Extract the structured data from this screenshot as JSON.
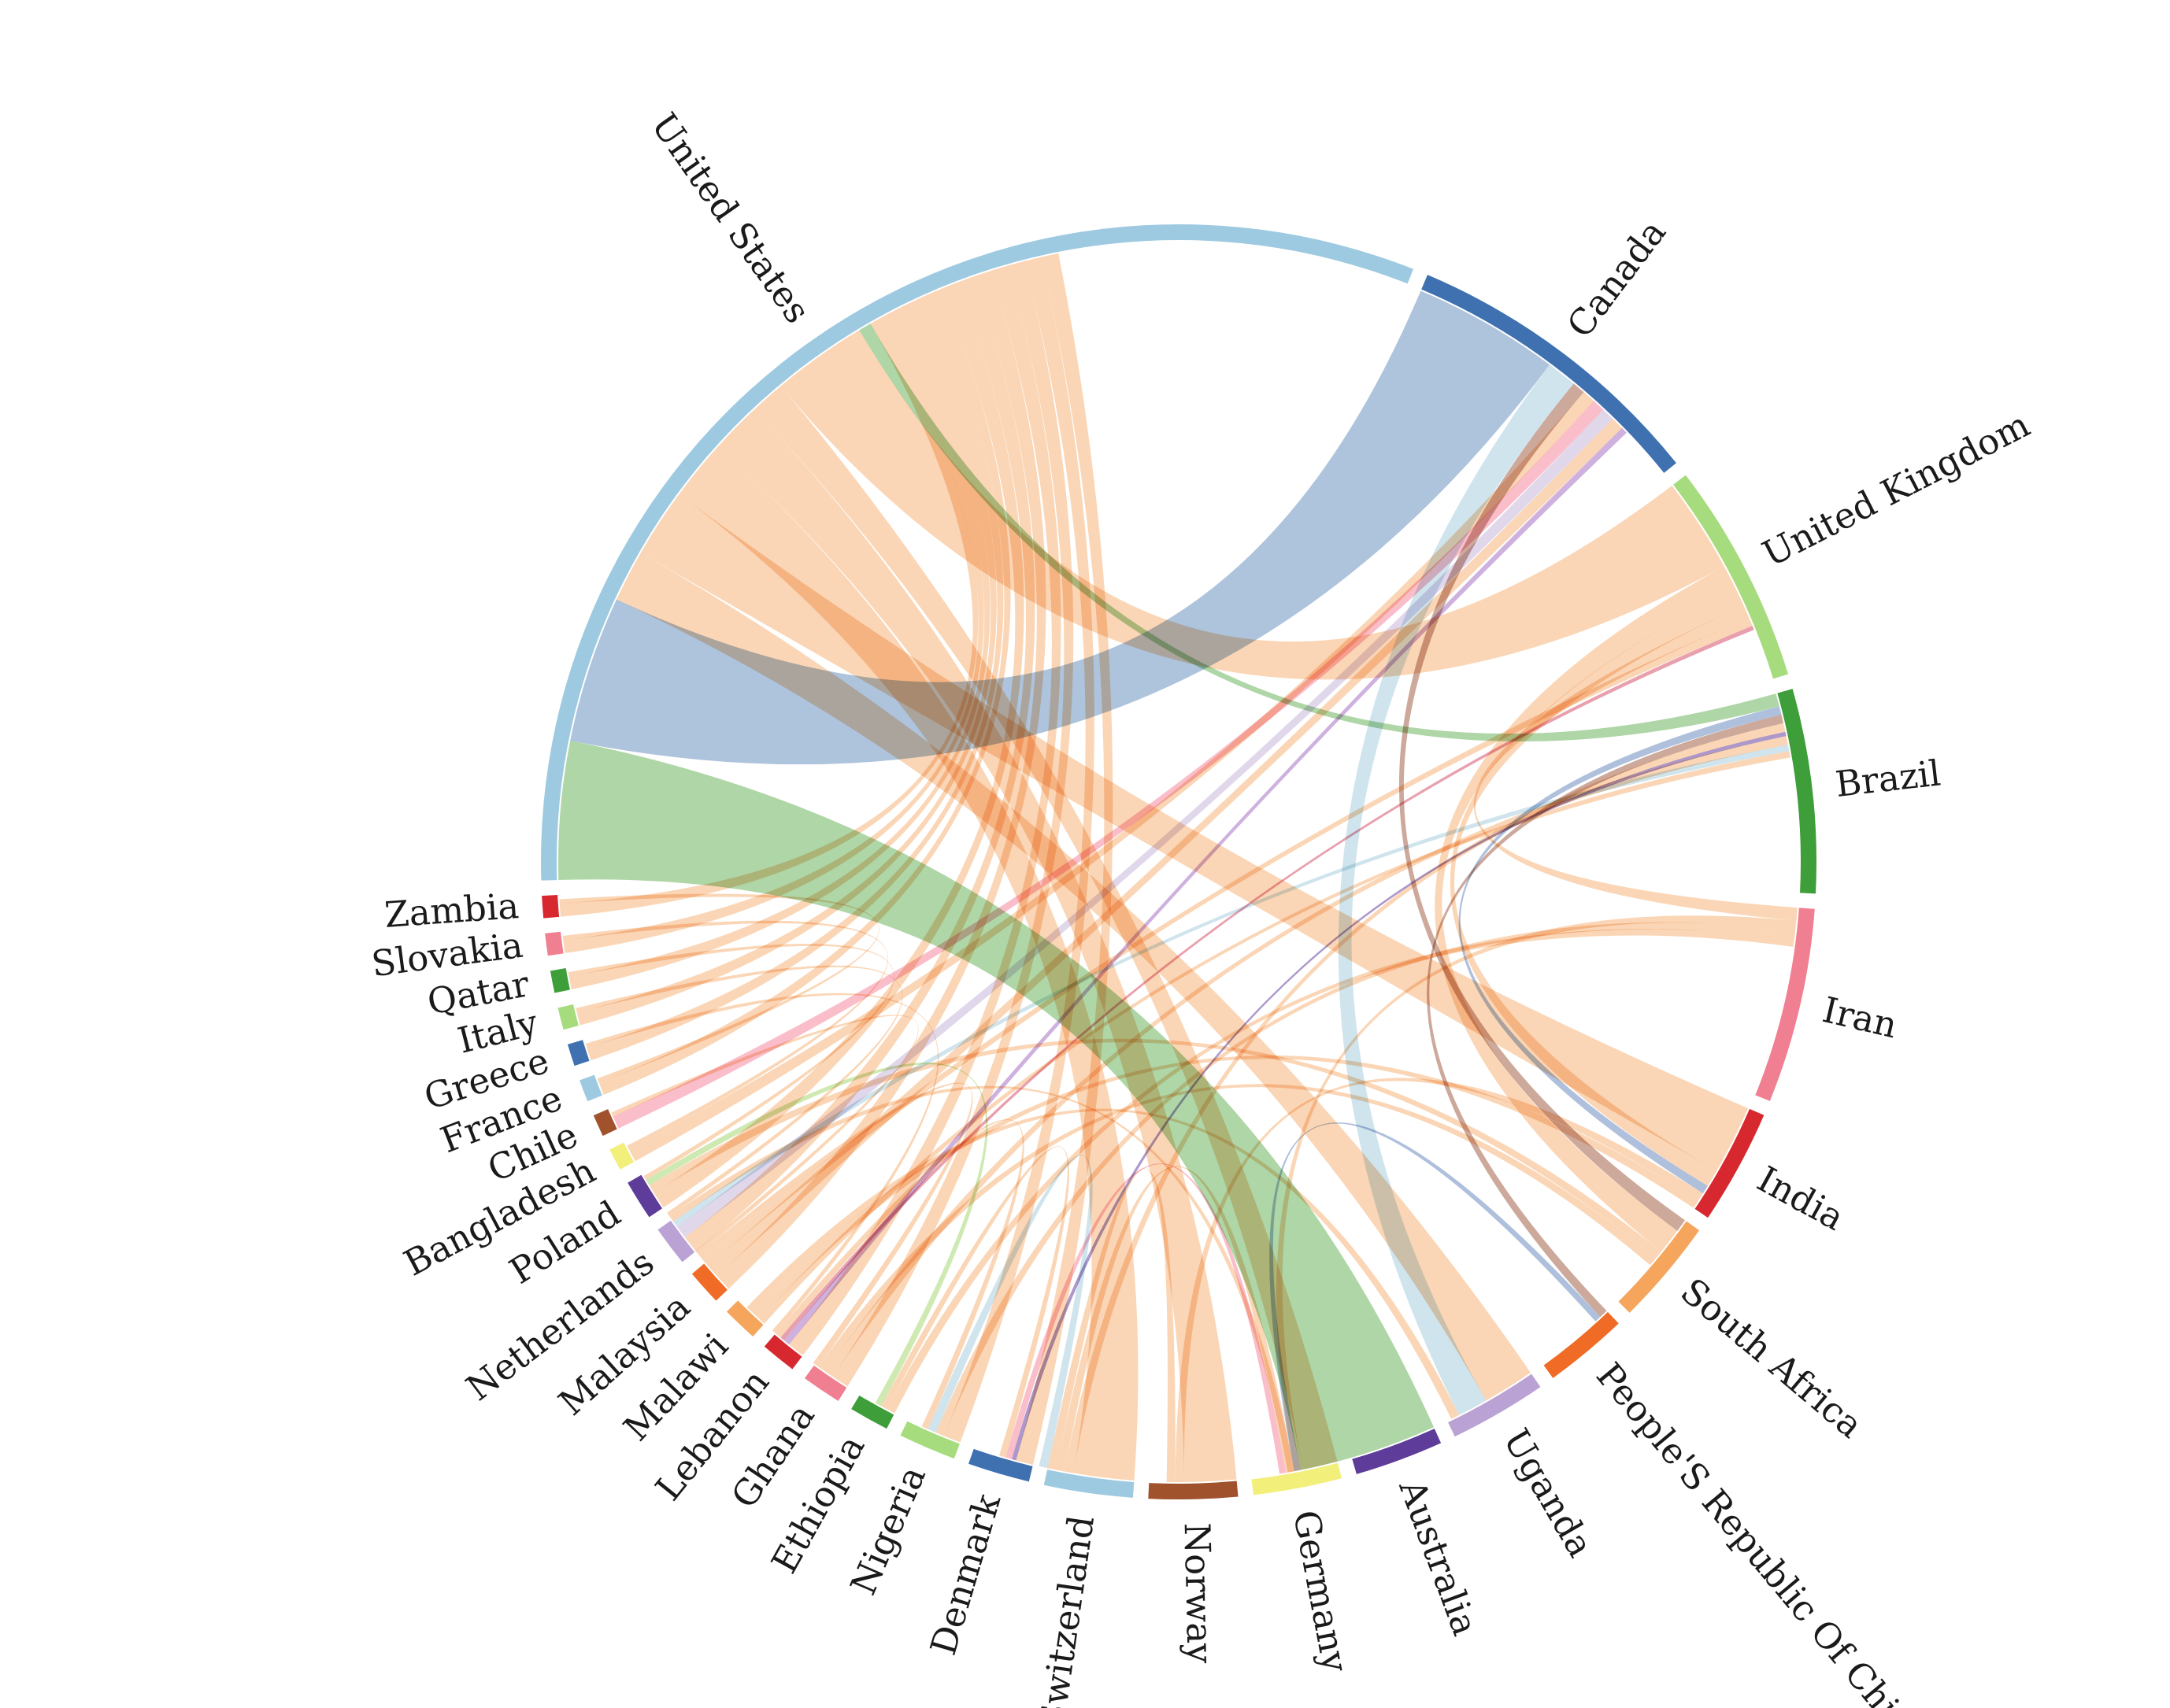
{
  "chart_data": {
    "type": "chord",
    "title": "",
    "legend": "none",
    "groups": [
      {
        "name": "United States",
        "value": 28,
        "color": "#9ecae1"
      },
      {
        "name": "Canada",
        "value": 7,
        "color": "#3f71b0"
      },
      {
        "name": "United Kingdom",
        "value": 5,
        "color": "#a6dc7e"
      },
      {
        "name": "Brazil",
        "value": 4.6,
        "color": "#3e9e3a"
      },
      {
        "name": "Iran",
        "value": 4.4,
        "color": "#f07f92"
      },
      {
        "name": "India",
        "value": 2.6,
        "color": "#d7282f"
      },
      {
        "name": "South Africa",
        "value": 2.4,
        "color": "#f5a55c"
      },
      {
        "name": "People'S Republic Of China",
        "value": 1.9,
        "color": "#f06b25"
      },
      {
        "name": "Uganda",
        "value": 2.2,
        "color": "#bba2d4"
      },
      {
        "name": "Australia",
        "value": 2.0,
        "color": "#5e3c99"
      },
      {
        "name": "Germany",
        "value": 2.0,
        "color": "#f2f07b"
      },
      {
        "name": "Norway",
        "value": 2.0,
        "color": "#a0522d"
      },
      {
        "name": "Switzerland",
        "value": 2.0,
        "color": "#9ecae1"
      },
      {
        "name": "Denmark",
        "value": 1.4,
        "color": "#3f71b0"
      },
      {
        "name": "Nigeria",
        "value": 1.3,
        "color": "#a6dc7e"
      },
      {
        "name": "Ethiopia",
        "value": 0.9,
        "color": "#3e9e3a"
      },
      {
        "name": "Ghana",
        "value": 0.9,
        "color": "#f07f92"
      },
      {
        "name": "Lebanon",
        "value": 0.8,
        "color": "#d7282f"
      },
      {
        "name": "Malawi",
        "value": 0.8,
        "color": "#f5a55c"
      },
      {
        "name": "Malaysia",
        "value": 0.8,
        "color": "#f06b25"
      },
      {
        "name": "Netherlands",
        "value": 0.9,
        "color": "#bba2d4"
      },
      {
        "name": "Poland",
        "value": 0.9,
        "color": "#5e3c99"
      },
      {
        "name": "Bangladesh",
        "value": 0.5,
        "color": "#f2f07b"
      },
      {
        "name": "Chile",
        "value": 0.5,
        "color": "#a0522d"
      },
      {
        "name": "France",
        "value": 0.5,
        "color": "#9ecae1"
      },
      {
        "name": "Greece",
        "value": 0.5,
        "color": "#3f71b0"
      },
      {
        "name": "Italy",
        "value": 0.5,
        "color": "#a6dc7e"
      },
      {
        "name": "Qatar",
        "value": 0.5,
        "color": "#3e9e3a"
      },
      {
        "name": "Slovakia",
        "value": 0.5,
        "color": "#f07f92"
      },
      {
        "name": "Zambia",
        "value": 0.5,
        "color": "#d7282f"
      }
    ],
    "links": [
      {
        "source": "United States",
        "target": "Australia",
        "value": 3.2,
        "color": "#a1cf98"
      },
      {
        "source": "United States",
        "target": "Canada",
        "value": 3.4,
        "color": "#a0b8d6"
      },
      {
        "source": "United States",
        "target": "Uganda",
        "value": 1.2,
        "color": "#f9cfa9"
      },
      {
        "source": "United States",
        "target": "India",
        "value": 1.6,
        "color": "#f9cfa9"
      },
      {
        "source": "United States",
        "target": "Switzerland",
        "value": 1.4,
        "color": "#f9cfa9"
      },
      {
        "source": "United States",
        "target": "Norway",
        "value": 1.2,
        "color": "#f9cfa9"
      },
      {
        "source": "United States",
        "target": "Germany",
        "value": 0.8,
        "color": "#f9cfa9"
      },
      {
        "source": "United States",
        "target": "United Kingdom",
        "value": 2.2,
        "color": "#f9cfa9"
      },
      {
        "source": "United States",
        "target": "Brazil",
        "value": 0.3,
        "color": "#a1cf98"
      },
      {
        "source": "United States",
        "target": "Zambia",
        "value": 0.3,
        "color": "#f9cfa9"
      },
      {
        "source": "United States",
        "target": "Slovakia",
        "value": 0.3,
        "color": "#f9cfa9"
      },
      {
        "source": "United States",
        "target": "Qatar",
        "value": 0.3,
        "color": "#f9cfa9"
      },
      {
        "source": "United States",
        "target": "Italy",
        "value": 0.3,
        "color": "#f9cfa9"
      },
      {
        "source": "United States",
        "target": "Greece",
        "value": 0.3,
        "color": "#f9cfa9"
      },
      {
        "source": "United States",
        "target": "France",
        "value": 0.3,
        "color": "#f9cfa9"
      },
      {
        "source": "United States",
        "target": "Poland",
        "value": 0.4,
        "color": "#f9cfa9"
      },
      {
        "source": "United States",
        "target": "Netherlands",
        "value": 0.4,
        "color": "#f9cfa9"
      },
      {
        "source": "United States",
        "target": "Malaysia",
        "value": 0.4,
        "color": "#f9cfa9"
      },
      {
        "source": "United States",
        "target": "Lebanon",
        "value": 0.4,
        "color": "#f9cfa9"
      },
      {
        "source": "United States",
        "target": "Ghana",
        "value": 0.4,
        "color": "#f9cfa9"
      },
      {
        "source": "United States",
        "target": "Nigeria",
        "value": 0.4,
        "color": "#f9cfa9"
      },
      {
        "source": "United States",
        "target": "Denmark",
        "value": 0.4,
        "color": "#f9cfa9"
      },
      {
        "source": "Canada",
        "target": "Uganda",
        "value": 0.7,
        "color": "#c8dfea"
      },
      {
        "source": "Canada",
        "target": "South Africa",
        "value": 0.3,
        "color": "#c49a8b"
      },
      {
        "source": "Canada",
        "target": "Bangladesh",
        "value": 0.3,
        "color": "#f9cfa9"
      },
      {
        "source": "Canada",
        "target": "Chile",
        "value": 0.3,
        "color": "#f9b3c1"
      },
      {
        "source": "Canada",
        "target": "Netherlands",
        "value": 0.3,
        "color": "#dcd0e8"
      },
      {
        "source": "Canada",
        "target": "Malaysia",
        "value": 0.3,
        "color": "#f9cfa9"
      },
      {
        "source": "Canada",
        "target": "Lebanon",
        "value": 0.15,
        "color": "#c7a3d9"
      },
      {
        "source": "United Kingdom",
        "target": "South Africa",
        "value": 0.6,
        "color": "#f9cfa9"
      },
      {
        "source": "United Kingdom",
        "target": "India",
        "value": 0.4,
        "color": "#f9cfa9"
      },
      {
        "source": "United Kingdom",
        "target": "Iran",
        "value": 0.3,
        "color": "#f9cfa9"
      },
      {
        "source": "United Kingdom",
        "target": "Malaysia",
        "value": 0.2,
        "color": "#f9cfa9"
      },
      {
        "source": "United Kingdom",
        "target": "Lebanon",
        "value": 0.1,
        "color": "#e58fa0"
      },
      {
        "source": "Brazil",
        "target": "India",
        "value": 0.2,
        "color": "#a1b5d6"
      },
      {
        "source": "Brazil",
        "target": "People'S Republic Of China",
        "value": 0.2,
        "color": "#c49a8b"
      },
      {
        "source": "Brazil",
        "target": "Switzerland",
        "value": 0.2,
        "color": "#f9cfa9"
      },
      {
        "source": "Brazil",
        "target": "Denmark",
        "value": 0.1,
        "color": "#9d86c2"
      },
      {
        "source": "Brazil",
        "target": "Ghana",
        "value": 0.2,
        "color": "#f9cfa9"
      },
      {
        "source": "Brazil",
        "target": "Netherlands",
        "value": 0.15,
        "color": "#c8dfea"
      },
      {
        "source": "Brazil",
        "target": "Malawi",
        "value": 0.15,
        "color": "#f9cfa9"
      },
      {
        "source": "Iran",
        "target": "Germany",
        "value": 0.2,
        "color": "#f9cfa9"
      },
      {
        "source": "Iran",
        "target": "Nigeria",
        "value": 0.2,
        "color": "#f9cfa9"
      },
      {
        "source": "Iran",
        "target": "Ethiopia",
        "value": 0.2,
        "color": "#f9cfa9"
      },
      {
        "source": "India",
        "target": "Norway",
        "value": 0.2,
        "color": "#f9cfa9"
      },
      {
        "source": "India",
        "target": "Malawi",
        "value": 0.2,
        "color": "#f9cfa9"
      },
      {
        "source": "South Africa",
        "target": "Poland",
        "value": 0.2,
        "color": "#f9cfa9"
      },
      {
        "source": "South Africa",
        "target": "Ghana",
        "value": 0.2,
        "color": "#f9cfa9"
      },
      {
        "source": "People'S Republic Of China",
        "target": "Australia",
        "value": 0.15,
        "color": "#a1b5d6"
      },
      {
        "source": "Uganda",
        "target": "Malawi",
        "value": 0.2,
        "color": "#f9cfa9"
      },
      {
        "source": "Australia",
        "target": "Netherlands",
        "value": 0.15,
        "color": "#f9cfa9"
      },
      {
        "source": "Germany",
        "target": "Switzerland",
        "value": 0.2,
        "color": "#f9cfa9"
      },
      {
        "source": "Germany",
        "target": "Denmark",
        "value": 0.15,
        "color": "#f9b3c1"
      },
      {
        "source": "Norway",
        "target": "Switzerland",
        "value": 0.2,
        "color": "#f9cfa9"
      },
      {
        "source": "Switzerland",
        "target": "Nigeria",
        "value": 0.2,
        "color": "#c8dfea"
      },
      {
        "source": "Denmark",
        "target": "Ethiopia",
        "value": 0.15,
        "color": "#f9cfa9"
      },
      {
        "source": "Nigeria",
        "target": "Lebanon",
        "value": 0.15,
        "color": "#f9cfa9"
      },
      {
        "source": "Ghana",
        "target": "Malaysia",
        "value": 0.15,
        "color": "#f9cfa9"
      },
      {
        "source": "Ethiopia",
        "target": "Poland",
        "value": 0.15,
        "color": "#c5e5a5"
      },
      {
        "source": "Lebanon",
        "target": "Greece",
        "value": 0.1,
        "color": "#f9cfa9"
      },
      {
        "source": "Malaysia",
        "target": "Chile",
        "value": 0.1,
        "color": "#f9cfa9"
      },
      {
        "source": "Netherlands",
        "target": "Italy",
        "value": 0.1,
        "color": "#f9cfa9"
      },
      {
        "source": "Poland",
        "target": "Qatar",
        "value": 0.1,
        "color": "#f9cfa9"
      },
      {
        "source": "Bangladesh",
        "target": "Slovakia",
        "value": 0.1,
        "color": "#f9cfa9"
      },
      {
        "source": "France",
        "target": "Zambia",
        "value": 0.1,
        "color": "#f9cfa9"
      }
    ]
  }
}
